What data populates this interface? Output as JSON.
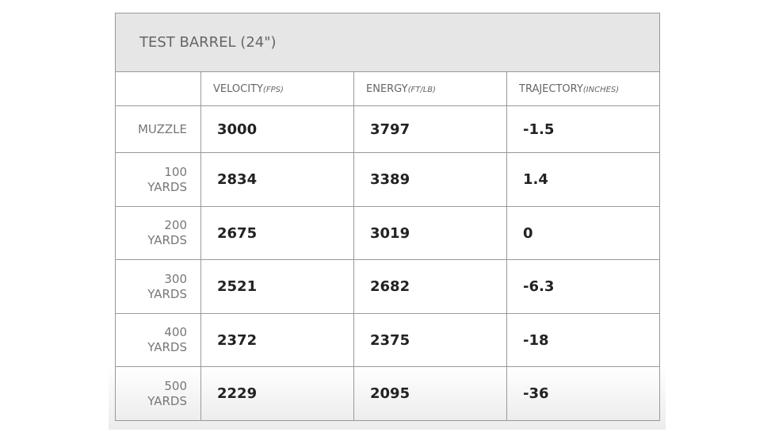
{
  "header": {
    "title": "TEST BARREL (24\")"
  },
  "table": {
    "columns": [
      {
        "label": "VELOCITY",
        "unit": "(FPS)"
      },
      {
        "label": "ENERGY",
        "unit": "(FT/LB)"
      },
      {
        "label": "TRAJECTORY",
        "unit": "(INCHES)"
      }
    ],
    "rows": [
      {
        "label": "MUZZLE",
        "cells": [
          "3000",
          "3797",
          "-1.5"
        ]
      },
      {
        "label": "100 YARDS",
        "cells": [
          "2834",
          "3389",
          "1.4"
        ]
      },
      {
        "label": "200 YARDS",
        "cells": [
          "2675",
          "3019",
          "0"
        ]
      },
      {
        "label": "300 YARDS",
        "cells": [
          "2521",
          "2682",
          "-6.3"
        ]
      },
      {
        "label": "400 YARDS",
        "cells": [
          "2372",
          "2375",
          "-18"
        ]
      },
      {
        "label": "500 YARDS",
        "cells": [
          "2229",
          "2095",
          "-36"
        ]
      }
    ]
  }
}
